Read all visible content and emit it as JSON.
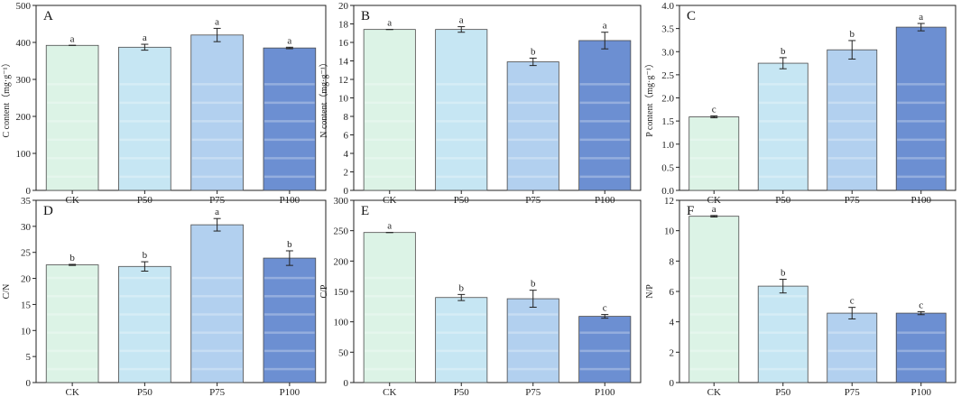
{
  "figure": {
    "title": ""
  },
  "colors": {
    "CK": "#dcf3e6",
    "P50": "#c6e6f3",
    "P75": "#b2d0ef",
    "P100": "#6c8fd2",
    "stripe": "#ffffff",
    "axis": "#222222"
  },
  "chart_data": [
    {
      "type": "bar",
      "panel_label": "A",
      "categories": [
        "CK",
        "P50",
        "P75",
        "P100"
      ],
      "values": [
        392,
        387,
        420,
        385
      ],
      "errors": [
        0,
        8,
        18,
        2
      ],
      "letters": [
        "a",
        "a",
        "a",
        "a"
      ],
      "ylabel": "C content（mg·g⁻¹）",
      "ylim": [
        0,
        500
      ],
      "yticks": [
        "0",
        "100",
        "200",
        "300",
        "400",
        "500"
      ]
    },
    {
      "type": "bar",
      "panel_label": "B",
      "categories": [
        "CK",
        "P50",
        "P75",
        "P100"
      ],
      "values": [
        17.4,
        17.4,
        13.9,
        16.2
      ],
      "errors": [
        0,
        0.3,
        0.4,
        0.9
      ],
      "letters": [
        "a",
        "a",
        "b",
        "a"
      ],
      "ylabel": "N content（mg·g⁻¹）",
      "ylim": [
        0,
        20
      ],
      "yticks": [
        "0",
        "2",
        "4",
        "6",
        "8",
        "10",
        "12",
        "14",
        "16",
        "18",
        "20"
      ]
    },
    {
      "type": "bar",
      "panel_label": "C",
      "categories": [
        "CK",
        "P50",
        "P75",
        "P100"
      ],
      "values": [
        1.59,
        2.75,
        3.04,
        3.53
      ],
      "errors": [
        0.02,
        0.12,
        0.2,
        0.08
      ],
      "letters": [
        "c",
        "b",
        "b",
        "a"
      ],
      "ylabel": "P content（mg·g⁻¹）",
      "ylim": [
        0,
        4.0
      ],
      "yticks": [
        "0.0",
        "0.5",
        "1.0",
        "1.5",
        "2.0",
        "2.5",
        "3.0",
        "3.5",
        "4.0"
      ]
    },
    {
      "type": "bar",
      "panel_label": "D",
      "categories": [
        "CK",
        "P50",
        "P75",
        "P100"
      ],
      "values": [
        22.6,
        22.3,
        30.3,
        23.9
      ],
      "errors": [
        0.1,
        0.9,
        1.2,
        1.4
      ],
      "letters": [
        "b",
        "b",
        "a",
        "b"
      ],
      "ylabel": "C/N",
      "ylim": [
        0,
        35
      ],
      "yticks": [
        "0",
        "5",
        "10",
        "15",
        "20",
        "25",
        "30",
        "35"
      ]
    },
    {
      "type": "bar",
      "panel_label": "E",
      "categories": [
        "CK",
        "P50",
        "P75",
        "P100"
      ],
      "values": [
        247,
        140,
        138,
        109
      ],
      "errors": [
        0,
        5,
        14,
        3
      ],
      "letters": [
        "a",
        "b",
        "b",
        "c"
      ],
      "ylabel": "C/P",
      "ylim": [
        0,
        300
      ],
      "yticks": [
        "0",
        "50",
        "100",
        "150",
        "200",
        "250",
        "300"
      ]
    },
    {
      "type": "bar",
      "panel_label": "F",
      "categories": [
        "CK",
        "P50",
        "P75",
        "P100"
      ],
      "values": [
        10.95,
        6.35,
        4.57,
        4.57
      ],
      "errors": [
        0.05,
        0.45,
        0.38,
        0.1
      ],
      "letters": [
        "a",
        "b",
        "c",
        "c"
      ],
      "ylabel": "N/P",
      "ylim": [
        0,
        12
      ],
      "yticks": [
        "0",
        "2",
        "4",
        "6",
        "8",
        "10",
        "12"
      ]
    }
  ]
}
